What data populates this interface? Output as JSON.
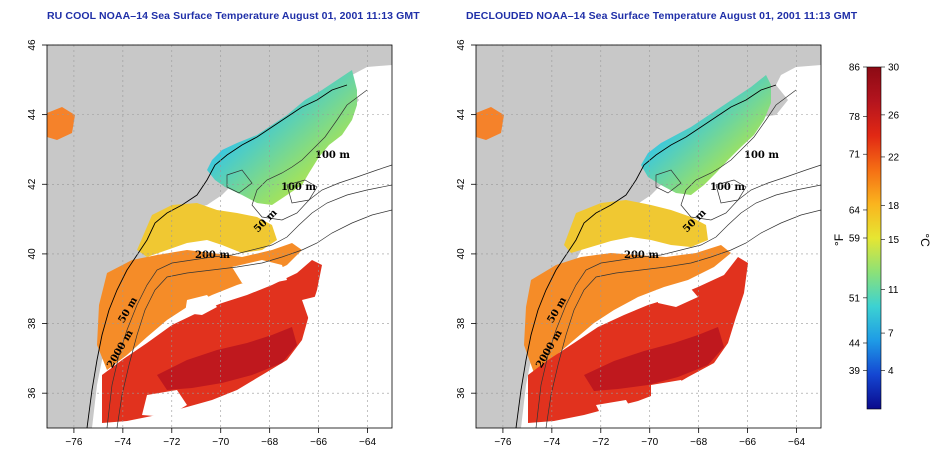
{
  "panels": [
    {
      "id": "left",
      "title": "RU COOL NOAA–14 Sea Surface Temperature August 01, 2001 11:13 GMT",
      "clouds": "heavy"
    },
    {
      "id": "right",
      "title": "DECLOUDED NOAA–14 Sea Surface Temperature August 01, 2001 11:13 GMT",
      "clouds": "light"
    }
  ],
  "axes": {
    "lon_ticks": [
      "−76",
      "−74",
      "−72",
      "−70",
      "−68",
      "−66",
      "−64"
    ],
    "lon_values": [
      -76,
      -74,
      -72,
      -70,
      -68,
      -66,
      -64
    ],
    "lat_ticks": [
      "36",
      "38",
      "40",
      "42",
      "44",
      "46"
    ],
    "lat_values": [
      36,
      38,
      40,
      42,
      44,
      46
    ],
    "lon_range": [
      -77.1,
      -63.0
    ],
    "lat_range": [
      35.0,
      46.0
    ]
  },
  "contour_labels": [
    "100 m",
    "100 m",
    "50 m",
    "200 m",
    "50 m",
    "2000 m"
  ],
  "colorbar": {
    "fahrenheit_ticks": [
      "86",
      "78",
      "71",
      "64",
      "59",
      "51",
      "44",
      "39"
    ],
    "celsius_ticks": [
      "30",
      "26",
      "22",
      "18",
      "15",
      "11",
      "7",
      "4"
    ],
    "fahrenheit_label": "°F",
    "celsius_label": "°C",
    "colors": [
      "#0a0a8c",
      "#1446d2",
      "#1e9be6",
      "#3cd2d2",
      "#8ce178",
      "#e6e632",
      "#fab41e",
      "#f56e14",
      "#e12814",
      "#b4141e",
      "#8c0a14"
    ]
  },
  "colors": {
    "land": "#c8c8c8",
    "water_cloud": "#ffffff",
    "title": "#1f2fa8"
  }
}
